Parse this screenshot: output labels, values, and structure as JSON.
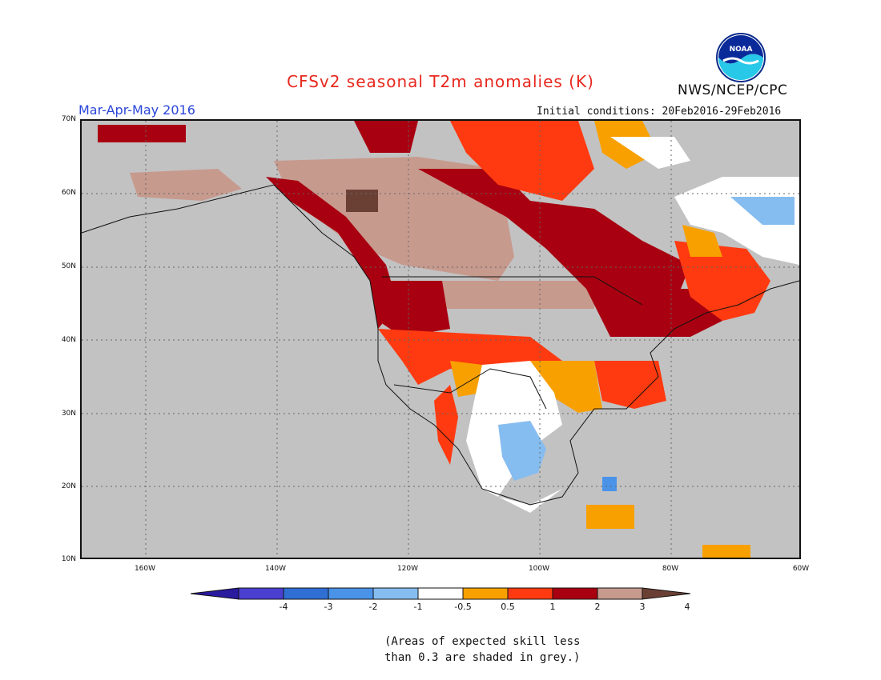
{
  "title": "CFSv2 seasonal T2m anomalies (K)",
  "season": "Mar-Apr-May 2016",
  "initial_conditions": "Initial conditions: 20Feb2016-29Feb2016",
  "organization": "NWS/NCEP/CPC",
  "logo_text": "NOAA",
  "lat_labels": [
    "70N",
    "60N",
    "50N",
    "40N",
    "30N",
    "20N",
    "10N"
  ],
  "lon_labels": [
    "160W",
    "140W",
    "120W",
    "100W",
    "80W",
    "60W"
  ],
  "colorbar": {
    "labels": [
      "-4",
      "-3",
      "-2",
      "-1",
      "-0.5",
      "0.5",
      "1",
      "2",
      "3",
      "4"
    ],
    "colors": [
      "#2a1a9e",
      "#4a3fd1",
      "#2f6fd4",
      "#4a93e8",
      "#86bdf0",
      "#ffffff",
      "#f8a000",
      "#ff3a10",
      "#a80010",
      "#c79a8e",
      "#6b4034"
    ]
  },
  "note_lines": [
    "(Areas of expected skill less",
    "than 0.3 are shaded in grey.)"
  ],
  "colors": {
    "grey": "#c2c2c2",
    "white": "#ffffff",
    "orange": "#f8a000",
    "red": "#ff3a10",
    "darkred": "#a80010",
    "tan": "#c79a8e",
    "brown": "#6b4034",
    "lightblue": "#86bdf0",
    "blue": "#4a93e8"
  }
}
